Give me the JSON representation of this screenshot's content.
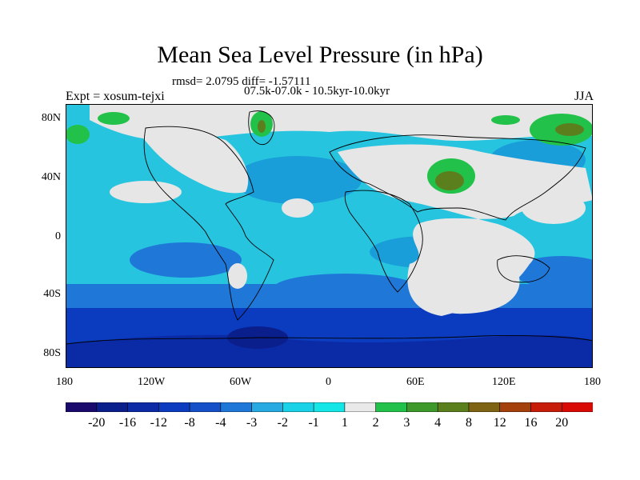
{
  "title": "Mean Sea Level Pressure (in hPa)",
  "stats_line": "rmsd= 2.0795 diff= -1.57111",
  "period_line": "07.5k-07.0k - 10.5kyr-10.0kyr",
  "experiment": "Expt = xosum-tejxi",
  "season": "JJA",
  "map": {
    "projection": "cylindrical-equidistant",
    "lon_range": [
      -180,
      180
    ],
    "lat_range": [
      -90,
      90
    ],
    "x_tick_labels": [
      "180",
      "120W",
      "60W",
      "0",
      "60E",
      "120E",
      "180"
    ],
    "y_tick_labels": [
      "80N",
      "40N",
      "0",
      "40S",
      "80S"
    ]
  },
  "colorbar": {
    "labels": [
      "-20",
      "-16",
      "-12",
      "-8",
      "-4",
      "-3",
      "-2",
      "-1",
      "1",
      "2",
      "3",
      "4",
      "8",
      "12",
      "16",
      "20"
    ],
    "colors": [
      "#1a0a6e",
      "#0a1e8c",
      "#0a2aa6",
      "#0b3cbf",
      "#1550c8",
      "#1f78d8",
      "#27a9e1",
      "#1ad2e8",
      "#14e6e8",
      "#e9e9e9",
      "#22c24a",
      "#3d9a2a",
      "#5c7f1e",
      "#7f6314",
      "#a4400c",
      "#c61c08",
      "#d90a04"
    ]
  },
  "colors": {
    "background": "#ffffff",
    "ocean_main": "#27c4df",
    "land_gray": "#e6e6e6",
    "coast": "#000000"
  }
}
